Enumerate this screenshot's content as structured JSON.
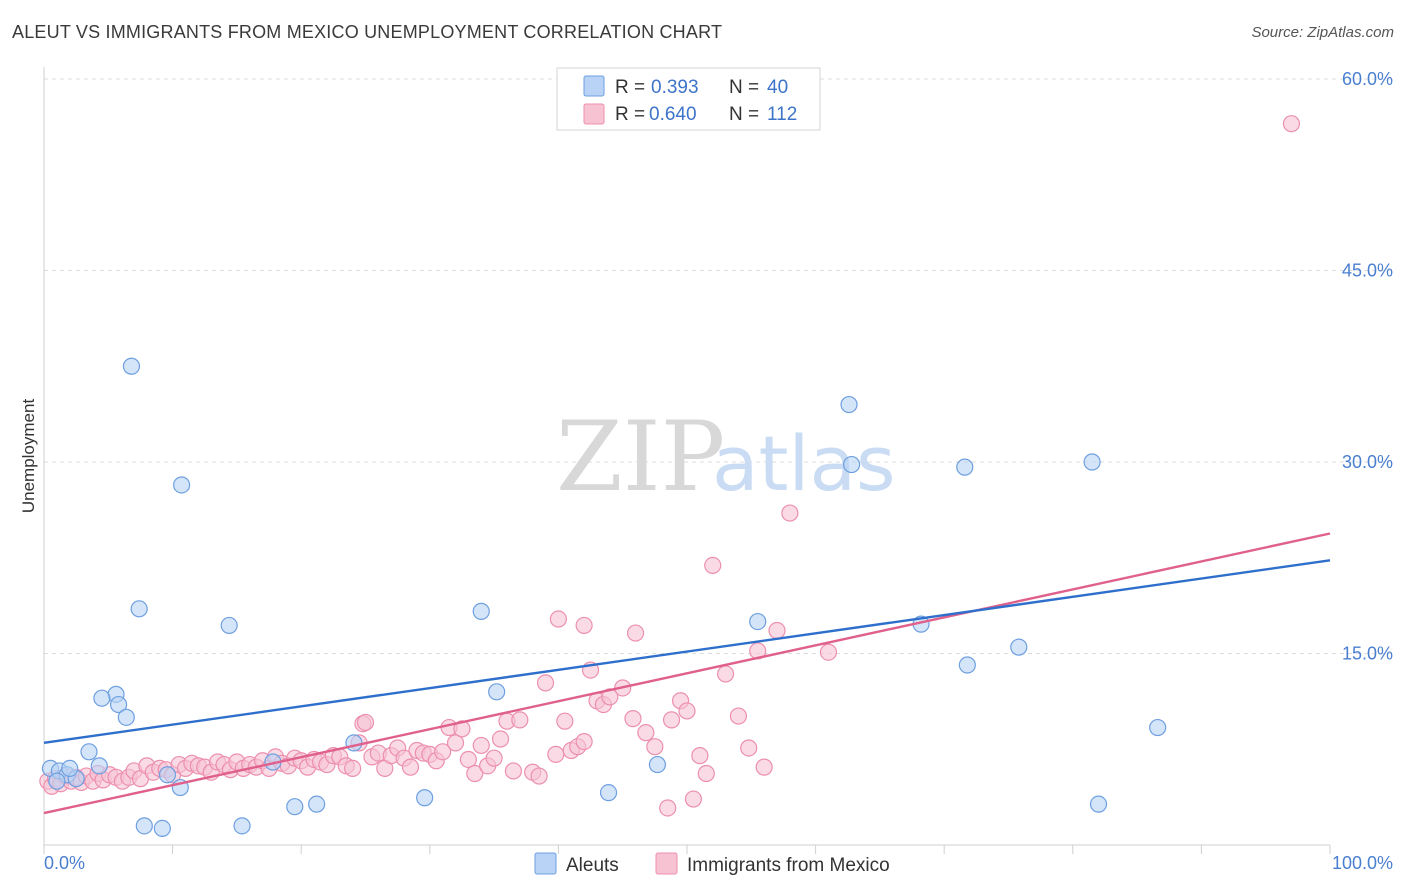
{
  "title": "ALEUT VS IMMIGRANTS FROM MEXICO UNEMPLOYMENT CORRELATION CHART",
  "source": "Source: ZipAtlas.com",
  "colors": {
    "aleut_fill": "#b8d3f5",
    "aleut_stroke": "#6e9fe0",
    "aleut_line": "#2f6fcc",
    "mexico_fill": "#f7c3d3",
    "mexico_stroke": "#ec8fae",
    "mexico_line": "#e0608c",
    "grid": "#dcdcdc",
    "tick": "#4a7fd0"
  },
  "legend": {
    "rows": [
      {
        "r_label": "R =",
        "r_value": "0.393",
        "n_label": "N =",
        "n_value": "40"
      },
      {
        "r_label": "R =",
        "r_value": "0.640",
        "n_label": "N =",
        "n_value": "112"
      }
    ]
  },
  "chart_data": {
    "type": "scatter",
    "title": "ALEUT VS IMMIGRANTS FROM MEXICO UNEMPLOYMENT CORRELATION CHART",
    "xlabel": "",
    "ylabel": "Unemployment",
    "xlim": [
      0,
      100
    ],
    "ylim": [
      0,
      60
    ],
    "x_tick_labels": [
      "0.0%",
      "100.0%"
    ],
    "y_ticks": [
      15,
      30,
      45,
      60
    ],
    "y_tick_labels": [
      "15.0%",
      "30.0%",
      "45.0%",
      "60.0%"
    ],
    "watermark": {
      "zip": "ZIP",
      "atlas": "atlas"
    },
    "series": [
      {
        "name": "Aleuts",
        "r": 0.393,
        "n": 40,
        "trend": {
          "x": [
            0,
            100
          ],
          "y": [
            8.0,
            22.3
          ]
        },
        "points": [
          [
            0.5,
            6.0
          ],
          [
            1.2,
            5.8
          ],
          [
            1.8,
            5.5
          ],
          [
            2.5,
            5.2
          ],
          [
            3.5,
            7.3
          ],
          [
            4.3,
            6.2
          ],
          [
            5.6,
            11.8
          ],
          [
            4.5,
            11.5
          ],
          [
            5.8,
            11.0
          ],
          [
            6.4,
            10.0
          ],
          [
            6.8,
            37.5
          ],
          [
            7.4,
            18.5
          ],
          [
            7.8,
            1.5
          ],
          [
            9.2,
            1.3
          ],
          [
            9.6,
            5.5
          ],
          [
            10.6,
            4.5
          ],
          [
            10.7,
            28.2
          ],
          [
            14.4,
            17.2
          ],
          [
            15.4,
            1.5
          ],
          [
            17.8,
            6.5
          ],
          [
            19.5,
            3.0
          ],
          [
            21.2,
            3.2
          ],
          [
            24.1,
            8.0
          ],
          [
            29.6,
            3.7
          ],
          [
            34.0,
            18.3
          ],
          [
            35.2,
            12.0
          ],
          [
            43.9,
            4.1
          ],
          [
            47.7,
            6.3
          ],
          [
            55.5,
            17.5
          ],
          [
            62.6,
            34.5
          ],
          [
            62.8,
            29.8
          ],
          [
            68.2,
            17.3
          ],
          [
            71.6,
            29.6
          ],
          [
            71.8,
            14.1
          ],
          [
            75.8,
            15.5
          ],
          [
            81.5,
            30.0
          ],
          [
            82.0,
            3.2
          ],
          [
            86.6,
            9.2
          ],
          [
            1.0,
            5.0
          ],
          [
            2.0,
            6.0
          ]
        ]
      },
      {
        "name": "Immigrants from Mexico",
        "r": 0.64,
        "n": 112,
        "trend": {
          "x": [
            0,
            100
          ],
          "y": [
            2.5,
            24.4
          ]
        },
        "points": [
          [
            0.3,
            5.0
          ],
          [
            0.6,
            4.6
          ],
          [
            0.9,
            5.2
          ],
          [
            1.3,
            4.8
          ],
          [
            1.7,
            5.4
          ],
          [
            2.1,
            5.0
          ],
          [
            2.5,
            5.3
          ],
          [
            2.9,
            4.9
          ],
          [
            3.3,
            5.4
          ],
          [
            3.8,
            5.0
          ],
          [
            4.2,
            5.6
          ],
          [
            4.6,
            5.1
          ],
          [
            5.1,
            5.5
          ],
          [
            5.6,
            5.3
          ],
          [
            6.1,
            5.0
          ],
          [
            6.6,
            5.3
          ],
          [
            7.0,
            5.8
          ],
          [
            7.5,
            5.2
          ],
          [
            8.0,
            6.2
          ],
          [
            8.5,
            5.7
          ],
          [
            9.0,
            6.0
          ],
          [
            9.5,
            5.9
          ],
          [
            10.0,
            5.5
          ],
          [
            10.5,
            6.3
          ],
          [
            11.0,
            6.0
          ],
          [
            11.5,
            6.4
          ],
          [
            12.0,
            6.2
          ],
          [
            12.5,
            6.1
          ],
          [
            13.0,
            5.7
          ],
          [
            13.5,
            6.5
          ],
          [
            14.0,
            6.3
          ],
          [
            14.5,
            5.9
          ],
          [
            15.0,
            6.5
          ],
          [
            15.5,
            6.0
          ],
          [
            16.0,
            6.3
          ],
          [
            16.5,
            6.1
          ],
          [
            17.0,
            6.6
          ],
          [
            17.5,
            6.0
          ],
          [
            18.0,
            6.9
          ],
          [
            18.5,
            6.4
          ],
          [
            19.0,
            6.2
          ],
          [
            19.5,
            6.8
          ],
          [
            20.0,
            6.6
          ],
          [
            20.5,
            6.1
          ],
          [
            21.0,
            6.7
          ],
          [
            21.5,
            6.5
          ],
          [
            22.0,
            6.3
          ],
          [
            22.5,
            7.0
          ],
          [
            23.0,
            6.9
          ],
          [
            23.5,
            6.2
          ],
          [
            24.0,
            6.0
          ],
          [
            24.5,
            8.0
          ],
          [
            24.8,
            9.5
          ],
          [
            25.0,
            9.6
          ],
          [
            25.5,
            6.9
          ],
          [
            26.0,
            7.2
          ],
          [
            26.5,
            6.0
          ],
          [
            27.0,
            7.0
          ],
          [
            27.5,
            7.6
          ],
          [
            28.0,
            6.8
          ],
          [
            28.5,
            6.1
          ],
          [
            29.0,
            7.4
          ],
          [
            29.5,
            7.2
          ],
          [
            30.0,
            7.1
          ],
          [
            30.5,
            6.6
          ],
          [
            31.0,
            7.3
          ],
          [
            31.5,
            9.2
          ],
          [
            32.0,
            8.0
          ],
          [
            32.5,
            9.1
          ],
          [
            33.0,
            6.7
          ],
          [
            33.5,
            5.6
          ],
          [
            34.0,
            7.8
          ],
          [
            34.5,
            6.2
          ],
          [
            35.0,
            6.8
          ],
          [
            35.5,
            8.3
          ],
          [
            36.0,
            9.7
          ],
          [
            36.5,
            5.8
          ],
          [
            37.0,
            9.8
          ],
          [
            38.0,
            5.7
          ],
          [
            38.5,
            5.4
          ],
          [
            39.0,
            12.7
          ],
          [
            39.8,
            7.1
          ],
          [
            40.5,
            9.7
          ],
          [
            41.0,
            7.4
          ],
          [
            41.5,
            7.7
          ],
          [
            42.0,
            8.1
          ],
          [
            42.5,
            13.7
          ],
          [
            43.0,
            11.3
          ],
          [
            43.5,
            11.0
          ],
          [
            44.0,
            11.6
          ],
          [
            45.0,
            12.3
          ],
          [
            45.8,
            9.9
          ],
          [
            46.0,
            16.6
          ],
          [
            46.8,
            8.8
          ],
          [
            47.5,
            7.7
          ],
          [
            48.5,
            2.9
          ],
          [
            48.8,
            9.8
          ],
          [
            49.5,
            11.3
          ],
          [
            50.0,
            10.5
          ],
          [
            50.5,
            3.6
          ],
          [
            51.0,
            7.0
          ],
          [
            51.5,
            5.6
          ],
          [
            52.0,
            21.9
          ],
          [
            53.0,
            13.4
          ],
          [
            54.0,
            10.1
          ],
          [
            54.8,
            7.6
          ],
          [
            55.5,
            15.2
          ],
          [
            56.0,
            6.1
          ],
          [
            57.0,
            16.8
          ],
          [
            58.0,
            26.0
          ],
          [
            61.0,
            15.1
          ],
          [
            40.0,
            17.7
          ],
          [
            42.0,
            17.2
          ],
          [
            97.0,
            56.5
          ]
        ]
      }
    ]
  },
  "bottom_legend": {
    "aleuts": "Aleuts",
    "mexico": "Immigrants from Mexico"
  }
}
